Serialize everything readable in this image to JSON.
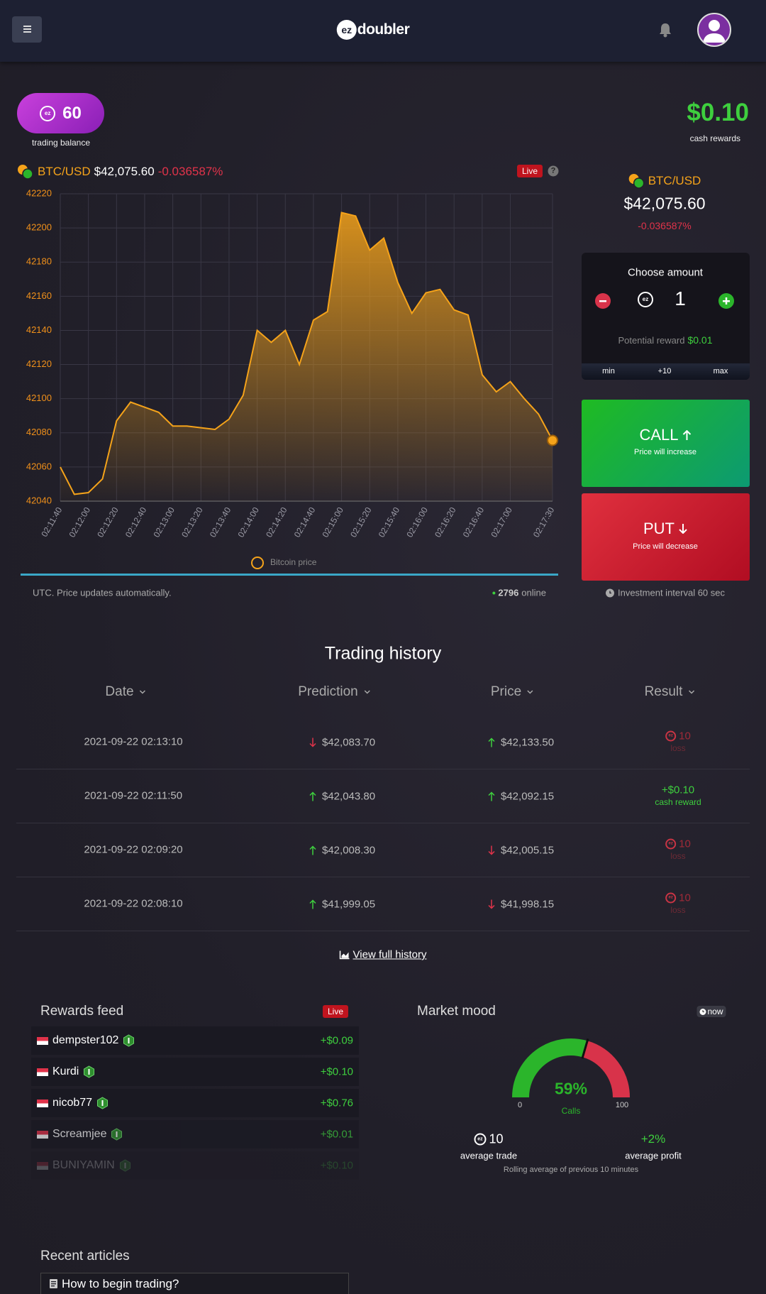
{
  "header": {
    "logo_mark": "ez",
    "logo_text": "doubler"
  },
  "balance": {
    "amount": "60",
    "label": "trading balance"
  },
  "cash": {
    "amount": "$0.10",
    "label": "cash rewards"
  },
  "ticker": {
    "pair": "BTC/USD",
    "price": "$42,075.60",
    "change": "-0.036587%",
    "live": "Live",
    "help": "?"
  },
  "chart_data": {
    "type": "line",
    "categories": [
      "02:11:40",
      null,
      "02:12:00",
      null,
      "02:12:20",
      null,
      "02:12:40",
      null,
      "02:13:00",
      null,
      "02:13:20",
      null,
      "02:13:40",
      null,
      "02:14:00",
      null,
      "02:14:20",
      null,
      "02:14:40",
      null,
      "02:15:00",
      null,
      "02:15:20",
      null,
      "02:15:40",
      null,
      "02:16:00",
      null,
      "02:16:20",
      null,
      "02:16:40",
      null,
      "02:17:00",
      null,
      null,
      "02:17:30"
    ],
    "series": [
      {
        "name": "Bitcoin price",
        "color": "#f5a31a",
        "values": [
          42060,
          42044,
          42045,
          42053,
          42087,
          42098,
          42095,
          42092,
          42084,
          42084,
          42083,
          42082,
          42088,
          42102,
          42140,
          42133,
          42140,
          42120,
          42146,
          42151,
          42209,
          42207,
          42187,
          42194,
          42168,
          42150,
          42162,
          42164,
          42152,
          42149,
          42114,
          42104,
          42110,
          42100,
          42091,
          42075.6
        ]
      }
    ],
    "ylim": [
      42040,
      42220
    ],
    "yticks": [
      42040,
      42060,
      42080,
      42100,
      42120,
      42140,
      42160,
      42180,
      42200,
      42220
    ],
    "grid": true
  },
  "chart_footer": {
    "note": "UTC. Price updates automatically.",
    "online_count": "2796",
    "online_label": "online"
  },
  "trade": {
    "choose_label": "Choose amount",
    "amount": "1",
    "potential_label": "Potential reward",
    "potential_value": "$0.01",
    "presets": [
      "min",
      "+10",
      "max"
    ],
    "call": {
      "label": "CALL",
      "sub": "Price will increase"
    },
    "put": {
      "label": "PUT",
      "sub": "Price will decrease"
    },
    "interval": "Investment interval 60 sec"
  },
  "history": {
    "title": "Trading history",
    "columns": [
      "Date",
      "Prediction",
      "Price",
      "Result"
    ],
    "rows": [
      {
        "date": "2021-09-22 02:13:10",
        "prediction": {
          "dir": "down",
          "value": "$42,083.70"
        },
        "price": {
          "dir": "up",
          "value": "$42,133.50"
        },
        "result": {
          "kind": "loss",
          "value": "10",
          "label": "loss"
        }
      },
      {
        "date": "2021-09-22 02:11:50",
        "prediction": {
          "dir": "up",
          "value": "$42,043.80"
        },
        "price": {
          "dir": "up",
          "value": "$42,092.15"
        },
        "result": {
          "kind": "win",
          "value": "+$0.10",
          "label": "cash reward"
        }
      },
      {
        "date": "2021-09-22 02:09:20",
        "prediction": {
          "dir": "up",
          "value": "$42,008.30"
        },
        "price": {
          "dir": "down",
          "value": "$42,005.15"
        },
        "result": {
          "kind": "loss",
          "value": "10",
          "label": "loss"
        }
      },
      {
        "date": "2021-09-22 02:08:10",
        "prediction": {
          "dir": "up",
          "value": "$41,999.05"
        },
        "price": {
          "dir": "down",
          "value": "$41,998.15"
        },
        "result": {
          "kind": "loss",
          "value": "10",
          "label": "loss"
        }
      }
    ],
    "link": "View full history"
  },
  "rewards": {
    "title": "Rewards feed",
    "live": "Live",
    "items": [
      {
        "name": "dempster102",
        "amount": "+$0.09"
      },
      {
        "name": "Kurdi",
        "amount": "+$0.10"
      },
      {
        "name": "nicob77",
        "amount": "+$0.76"
      },
      {
        "name": "Screamjee",
        "amount": "+$0.01"
      },
      {
        "name": "BUNIYAMIN",
        "amount": "+$0.10"
      }
    ]
  },
  "mood": {
    "title": "Market mood",
    "badge": "now",
    "gauge": {
      "value": 59,
      "label": "59%",
      "min": 0,
      "max": 100,
      "caption": "Calls"
    },
    "avg_trade": "10",
    "avg_trade_label": "average trade",
    "avg_profit": "+2%",
    "avg_profit_label": "average profit",
    "note": "Rolling average of previous 10 minutes"
  },
  "articles": {
    "title": "Recent articles",
    "items": [
      "How to begin trading?"
    ]
  }
}
